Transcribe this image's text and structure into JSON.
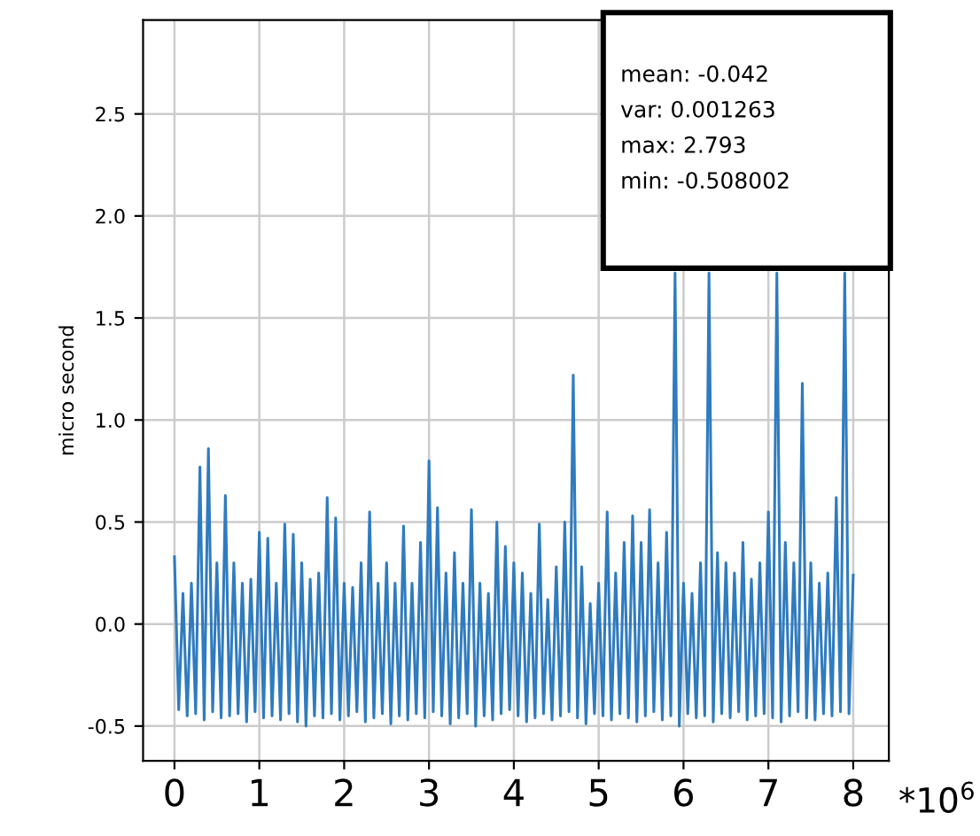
{
  "chart_data": {
    "type": "line",
    "ylabel": "micro second",
    "xlabel": "*10$^{6}$",
    "annotations": [
      "mean: -0.042",
      "var: 0.001263",
      "max: 2.793",
      "min: -0.508002"
    ],
    "xlim": [
      -0.37,
      8.42
    ],
    "ylim": [
      -0.67,
      2.96
    ],
    "xticks": [
      0,
      1,
      2,
      3,
      4,
      5,
      6,
      7,
      8
    ],
    "yticks": [
      -0.5,
      {
        "value": 0,
        "label": "0.0"
      },
      0.5,
      {
        "value": 1,
        "label": "1.0"
      },
      1.5,
      {
        "value": 2,
        "label": "2.0"
      },
      2.5
    ],
    "grid": true,
    "legend": false,
    "series": [
      {
        "color": "#2f7bbf",
        "x": [
          0,
          0.05,
          0.1,
          0.15,
          0.2,
          0.25,
          0.3,
          0.35,
          0.4,
          0.45,
          0.5,
          0.55,
          0.6,
          0.65,
          0.7,
          0.75,
          0.8,
          0.85,
          0.9,
          0.95,
          1.0,
          1.05,
          1.1,
          1.15,
          1.2,
          1.25,
          1.3,
          1.35,
          1.4,
          1.45,
          1.5,
          1.55,
          1.6,
          1.65,
          1.7,
          1.75,
          1.8,
          1.85,
          1.9,
          1.95,
          2.0,
          2.05,
          2.1,
          2.15,
          2.2,
          2.25,
          2.3,
          2.35,
          2.4,
          2.45,
          2.5,
          2.55,
          2.6,
          2.65,
          2.7,
          2.75,
          2.8,
          2.85,
          2.9,
          2.95,
          3.0,
          3.05,
          3.1,
          3.15,
          3.2,
          3.25,
          3.3,
          3.35,
          3.4,
          3.45,
          3.5,
          3.55,
          3.6,
          3.65,
          3.7,
          3.75,
          3.8,
          3.85,
          3.9,
          3.95,
          4.0,
          4.05,
          4.1,
          4.15,
          4.2,
          4.25,
          4.3,
          4.35,
          4.4,
          4.45,
          4.5,
          4.55,
          4.6,
          4.65,
          4.7,
          4.75,
          4.8,
          4.85,
          4.9,
          4.95,
          5.0,
          5.05,
          5.1,
          5.15,
          5.2,
          5.25,
          5.3,
          5.35,
          5.4,
          5.45,
          5.5,
          5.55,
          5.6,
          5.65,
          5.7,
          5.75,
          5.8,
          5.85,
          5.9,
          5.95,
          6.0,
          6.05,
          6.1,
          6.15,
          6.2,
          6.25,
          6.3,
          6.35,
          6.4,
          6.45,
          6.5,
          6.55,
          6.6,
          6.65,
          6.7,
          6.75,
          6.8,
          6.85,
          6.9,
          6.95,
          7.0,
          7.05,
          7.1,
          7.15,
          7.2,
          7.25,
          7.3,
          7.35,
          7.4,
          7.45,
          7.5,
          7.55,
          7.6,
          7.65,
          7.7,
          7.75,
          7.8,
          7.85,
          7.9,
          7.95,
          8.0
        ],
        "values": [
          0.33,
          -0.42,
          0.15,
          -0.45,
          0.2,
          -0.44,
          0.77,
          -0.47,
          0.86,
          -0.43,
          0.3,
          -0.46,
          0.63,
          -0.45,
          0.3,
          -0.44,
          0.2,
          -0.48,
          0.22,
          -0.43,
          0.45,
          -0.46,
          0.42,
          -0.45,
          0.2,
          -0.47,
          0.49,
          -0.44,
          0.44,
          -0.48,
          0.3,
          -0.5,
          0.22,
          -0.45,
          0.25,
          -0.46,
          0.62,
          -0.44,
          0.52,
          -0.47,
          0.2,
          -0.45,
          0.18,
          -0.43,
          0.3,
          -0.48,
          0.55,
          -0.46,
          0.2,
          -0.44,
          0.3,
          -0.49,
          0.2,
          -0.45,
          0.48,
          -0.47,
          0.2,
          -0.44,
          0.4,
          -0.46,
          0.8,
          -0.43,
          0.57,
          -0.45,
          0.25,
          -0.49,
          0.35,
          -0.46,
          0.2,
          -0.44,
          0.56,
          -0.5,
          0.2,
          -0.45,
          0.15,
          -0.47,
          0.5,
          -0.44,
          0.38,
          -0.42,
          0.3,
          -0.45,
          0.25,
          -0.48,
          0.15,
          -0.46,
          0.49,
          -0.44,
          0.12,
          -0.47,
          0.28,
          -0.45,
          0.5,
          -0.43,
          1.22,
          -0.46,
          0.28,
          -0.49,
          0.1,
          -0.44,
          0.2,
          -0.45,
          0.55,
          -0.47,
          0.25,
          -0.44,
          0.4,
          -0.46,
          0.53,
          -0.48,
          0.4,
          -0.45,
          0.56,
          -0.43,
          0.3,
          -0.47,
          0.45,
          -0.45,
          1.72,
          -0.5,
          0.2,
          -0.44,
          0.15,
          -0.46,
          0.3,
          -0.45,
          1.72,
          -0.48,
          0.35,
          -0.44,
          0.3,
          -0.46,
          0.25,
          -0.43,
          0.4,
          -0.47,
          0.22,
          -0.45,
          0.3,
          -0.44,
          0.55,
          -0.46,
          1.72,
          -0.48,
          0.4,
          -0.45,
          0.3,
          -0.43,
          1.18,
          -0.46,
          0.3,
          -0.47,
          0.2,
          -0.44,
          0.25,
          -0.45,
          0.62,
          -0.43,
          1.72,
          -0.44,
          0.24
        ]
      }
    ]
  }
}
